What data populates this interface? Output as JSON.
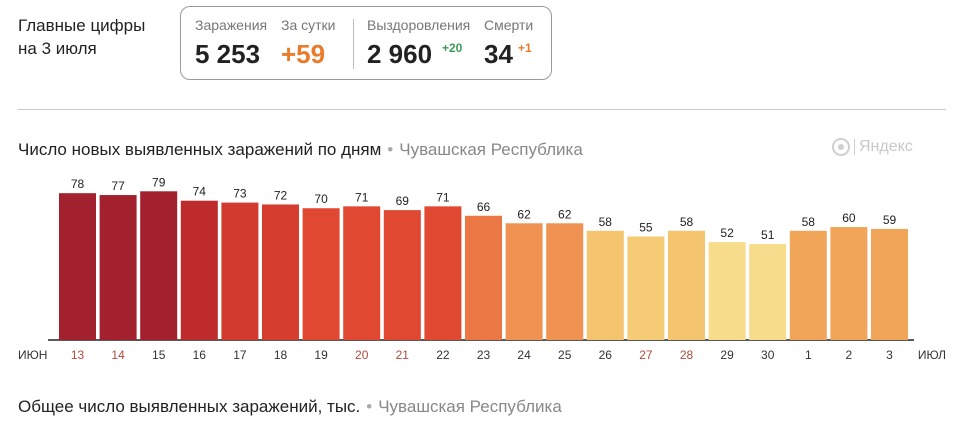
{
  "header": {
    "title_line1": "Главные цифры",
    "title_line2": "на 3 июля"
  },
  "stats": {
    "infections_label": "Заражения",
    "infections_value": "5 253",
    "per_day_label": "За сутки",
    "per_day_value": "+59",
    "recovered_label": "Выздоровления",
    "recovered_value": "2 960",
    "recovered_delta": "+20",
    "deaths_label": "Смерти",
    "deaths_value": "34",
    "deaths_delta": "+1"
  },
  "section1": {
    "title": "Число новых выявленных заражений по дням",
    "dot": "•",
    "region": "Чувашская Республика"
  },
  "section2": {
    "title": "Общее число выявленных заражений, тыс.",
    "dot": "•",
    "region": "Чувашская Республика"
  },
  "brand": {
    "name": "Яндекс"
  },
  "chart_data": {
    "type": "bar",
    "month_start_label": "ИЮН",
    "month_end_label": "ИЮЛ",
    "categories": [
      "13",
      "14",
      "15",
      "16",
      "17",
      "18",
      "19",
      "20",
      "21",
      "22",
      "23",
      "24",
      "25",
      "26",
      "27",
      "28",
      "29",
      "30",
      "1",
      "2",
      "3"
    ],
    "values": [
      78,
      77,
      79,
      74,
      73,
      72,
      70,
      71,
      69,
      71,
      66,
      62,
      62,
      58,
      55,
      58,
      52,
      51,
      58,
      60,
      59
    ],
    "weekend_categories": [
      "13",
      "14",
      "20",
      "21",
      "27",
      "28"
    ],
    "ylim": [
      0,
      85
    ],
    "grid": false,
    "colors": {
      "bars": [
        "#a3212e",
        "#a3212e",
        "#a3212e",
        "#bd2b2c",
        "#d23a2f",
        "#d53d2f",
        "#e04832",
        "#e04832",
        "#e04832",
        "#e04832",
        "#eb7744",
        "#f09252",
        "#f09252",
        "#f5c46e",
        "#f6cb76",
        "#f5c46e",
        "#f7dc8b",
        "#f7dc8b",
        "#f0a559",
        "#f0a559",
        "#f0a559"
      ],
      "tick_normal": "#333333",
      "tick_weekend": "#b34a3c"
    }
  }
}
